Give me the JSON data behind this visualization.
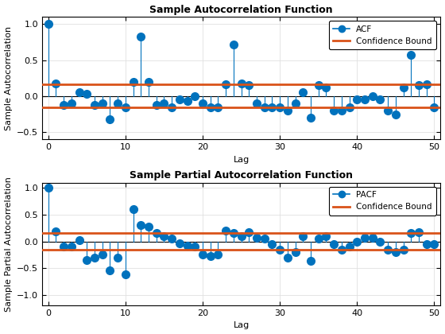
{
  "acf_values": [
    1.0,
    0.18,
    -0.12,
    -0.1,
    0.05,
    0.03,
    -0.12,
    -0.1,
    -0.32,
    -0.1,
    -0.15,
    0.2,
    0.83,
    0.2,
    -0.12,
    -0.1,
    -0.15,
    -0.05,
    -0.07,
    0.0,
    -0.1,
    -0.15,
    -0.15,
    0.17,
    0.72,
    0.18,
    0.15,
    -0.1,
    -0.15,
    -0.15,
    -0.15,
    -0.2,
    -0.1,
    0.05,
    -0.3,
    0.15,
    0.12,
    -0.2,
    -0.2,
    -0.15,
    -0.05,
    -0.05,
    0.0,
    -0.05,
    -0.2,
    -0.25,
    0.12,
    0.57,
    0.15,
    0.17,
    -0.15
  ],
  "pacf_values": [
    1.0,
    0.18,
    -0.1,
    -0.1,
    0.03,
    -0.35,
    -0.3,
    -0.25,
    -0.55,
    -0.3,
    -0.62,
    0.6,
    0.3,
    0.27,
    0.15,
    0.1,
    0.05,
    -0.03,
    -0.08,
    -0.1,
    -0.25,
    -0.27,
    -0.25,
    0.2,
    0.15,
    0.1,
    0.17,
    0.07,
    0.05,
    -0.05,
    -0.15,
    -0.3,
    -0.2,
    0.1,
    -0.37,
    0.05,
    0.1,
    -0.05,
    -0.15,
    -0.1,
    0.0,
    0.07,
    0.07,
    0.0,
    -0.15,
    -0.2,
    -0.15,
    0.15,
    0.17,
    -0.05,
    -0.05
  ],
  "confidence_bound": 0.16,
  "title_acf": "Sample Autocorrelation Function",
  "title_pacf": "Sample Partial Autocorrelation Function",
  "xlabel": "Lag",
  "ylabel_acf": "Sample Autocorrelation",
  "ylabel_pacf": "Sample Partial Autocorrelation",
  "line_color": "#0072BD",
  "conf_color": "#D95319",
  "markersize": 7,
  "stem_linewidth": 0.8,
  "conf_linewidth": 2.0,
  "ylim_acf": [
    -0.6,
    1.1
  ],
  "ylim_pacf": [
    -1.2,
    1.1
  ],
  "xlim": [
    -0.8,
    50.8
  ],
  "yticks_acf": [
    -0.5,
    0.0,
    0.5,
    1.0
  ],
  "yticks_pacf": [
    -1.0,
    -0.5,
    0.0,
    0.5,
    1.0
  ],
  "xticks": [
    0,
    10,
    20,
    30,
    40,
    50
  ],
  "grid_color": "#e0e0e0",
  "bg_color": "#ffffff",
  "title_fontsize": 9,
  "label_fontsize": 8,
  "tick_fontsize": 8,
  "legend_fontsize": 7.5
}
